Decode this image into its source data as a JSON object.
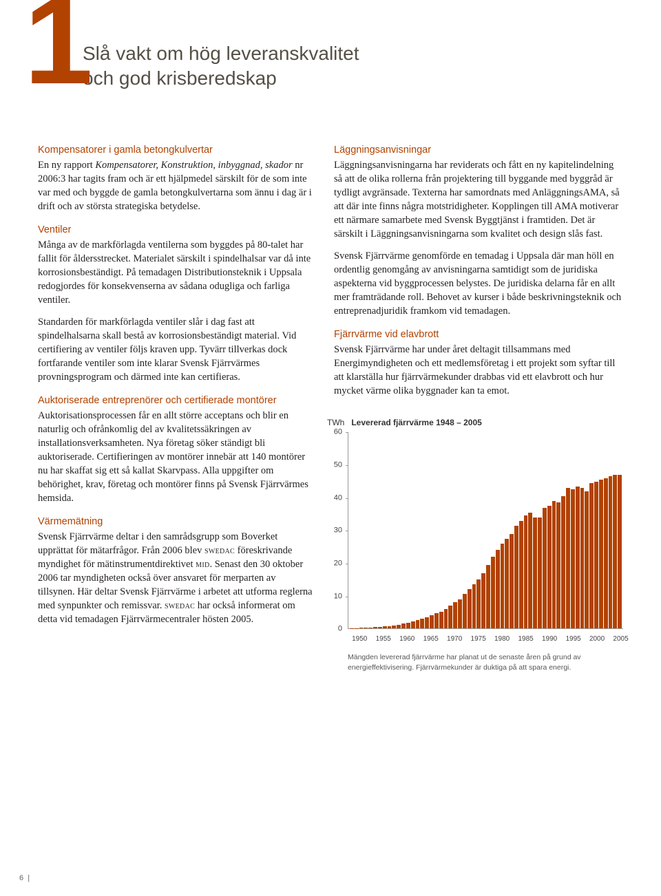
{
  "chapter_number": "1",
  "title_line1": "Slå vakt om hög leveranskvalitet",
  "title_line2": "och god krisberedskap",
  "left": {
    "h1": "Kompensatorer i gamla betongkulvertar",
    "p1a": "En ny rapport ",
    "p1b": "Kompensatorer, Konstruktion, inbyggnad, skador",
    "p1c": " nr 2006:3 har tagits fram och är ett hjälpmedel särskilt för de som inte var med och byggde de gamla betongkulvertarna som ännu i dag är i drift och av största strategiska betydelse.",
    "h2": "Ventiler",
    "p2": "Många av de markförlagda ventilerna som byggdes på 80-talet har fallit för åldersstrecket. Materialet särskilt i spindelhalsar var då inte korrosionsbeständigt. På temadagen Distributionsteknik i Uppsala redogjordes för konsekvenserna av sådana odugliga och farliga ventiler.",
    "p3": "Standarden för markförlagda ventiler slår i dag fast att spindelhalsarna skall bestå av korrosionsbeständigt material. Vid certifiering av ventiler följs kraven upp. Tyvärr tillverkas dock fortfarande ventiler som inte klarar Svensk Fjärrvärmes provningsprogram och därmed inte kan certifieras.",
    "h3": "Auktoriserade entreprenörer och certifierade montörer",
    "p4": "Auktorisationsprocessen får en allt större acceptans och blir en naturlig och ofrånkomlig del av kvalitetssäkringen av installationsverksamheten. Nya företag söker ständigt bli auktoriserade. Certifieringen av montörer innebär att 140 montörer nu har skaffat sig ett så kallat Skarvpass. Alla uppgifter om behörighet, krav, företag och montörer finns på Svensk Fjärrvärmes hemsida.",
    "h4": "Värmemätning",
    "p5a": "Svensk Fjärrvärme deltar i den samrådsgrupp som Boverket upprättat för mätarfrågor. Från 2006 blev ",
    "p5b": "swedac",
    "p5c": " föreskrivande myndighet för mätinstrumentdirektivet ",
    "p5d": "mid",
    "p5e": ". Senast den 30 oktober 2006 tar myndigheten också över ansvaret för merparten av tillsynen. Här deltar Svensk Fjärrvärme i arbetet att utforma reglerna med synpunkter och remissvar. ",
    "p5f": "swedac",
    "p5g": " har också informerat om detta vid temadagen Fjärrvärmecentraler hösten 2005."
  },
  "right": {
    "h1": "Läggningsanvisningar",
    "p1": "Läggningsanvisningarna har reviderats och fått en ny kapitelindelning så att de olika rollerna från projektering till byggande med byggråd är tydligt avgränsade. Texterna har samordnats med AnläggningsAMA, så att där inte finns några motstridigheter. Kopplingen till AMA motiverar ett närmare samarbete med Svensk Byggtjänst i framtiden. Det är särskilt i Läggningsanvisningarna som kvalitet och design slås fast.",
    "p2": "Svensk Fjärrvärme genomförde en temadag i Uppsala där man höll en ordentlig genomgång av anvisningarna samtidigt som de juridiska aspekterna vid byggprocessen belystes. De juridiska delarna får en allt mer framträdande roll. Behovet av kurser i både beskrivningsteknik och entreprenadjuridik framkom vid temadagen.",
    "h2": "Fjärrvärme vid elavbrott",
    "p3": "Svensk Fjärrvärme har under året deltagit tillsammans med Energimyndigheten och ett medlemsföretag i ett projekt som syftar till att klarställa hur fjärrvärmekunder drabbas vid ett elavbrott och hur mycket värme olika byggnader kan ta emot."
  },
  "chart": {
    "unit": "TWh",
    "title": "Levererad fjärrvärme 1948 – 2005",
    "ymax": 60,
    "yticks": [
      0,
      10,
      20,
      30,
      40,
      50,
      60
    ],
    "xstart": 1950,
    "xend": 2005,
    "xtick_step": 5,
    "xticks": [
      1950,
      1955,
      1960,
      1965,
      1970,
      1975,
      1980,
      1985,
      1990,
      1995,
      2000,
      2005
    ],
    "bar_color": "#b24200",
    "axis_color": "#999999",
    "label_color": "#444444",
    "background": "#ffffff",
    "values": [
      0.1,
      0.15,
      0.2,
      0.25,
      0.3,
      0.4,
      0.5,
      0.6,
      0.8,
      1.0,
      1.2,
      1.5,
      1.8,
      2.1,
      2.5,
      3.0,
      3.5,
      4.0,
      4.6,
      5.2,
      6.0,
      7.0,
      8.0,
      9.0,
      10.5,
      12.0,
      13.5,
      15.0,
      17.0,
      19.5,
      22.0,
      24.0,
      26.0,
      27.5,
      29.0,
      31.5,
      33.0,
      34.5,
      35.5,
      34.0,
      34.0,
      37.0,
      37.5,
      39.0,
      38.5,
      40.5,
      43.0,
      42.5,
      43.5,
      43.0,
      42.0,
      44.5,
      45.0,
      45.5,
      46.0,
      46.5,
      47.0,
      47.0
    ],
    "caption": "Mängden levererad fjärrvärme har planat ut de senaste åren på grund av energieffektivisering. Fjärrvärmekunder är duktiga på att spara energi."
  },
  "page_number": "6"
}
